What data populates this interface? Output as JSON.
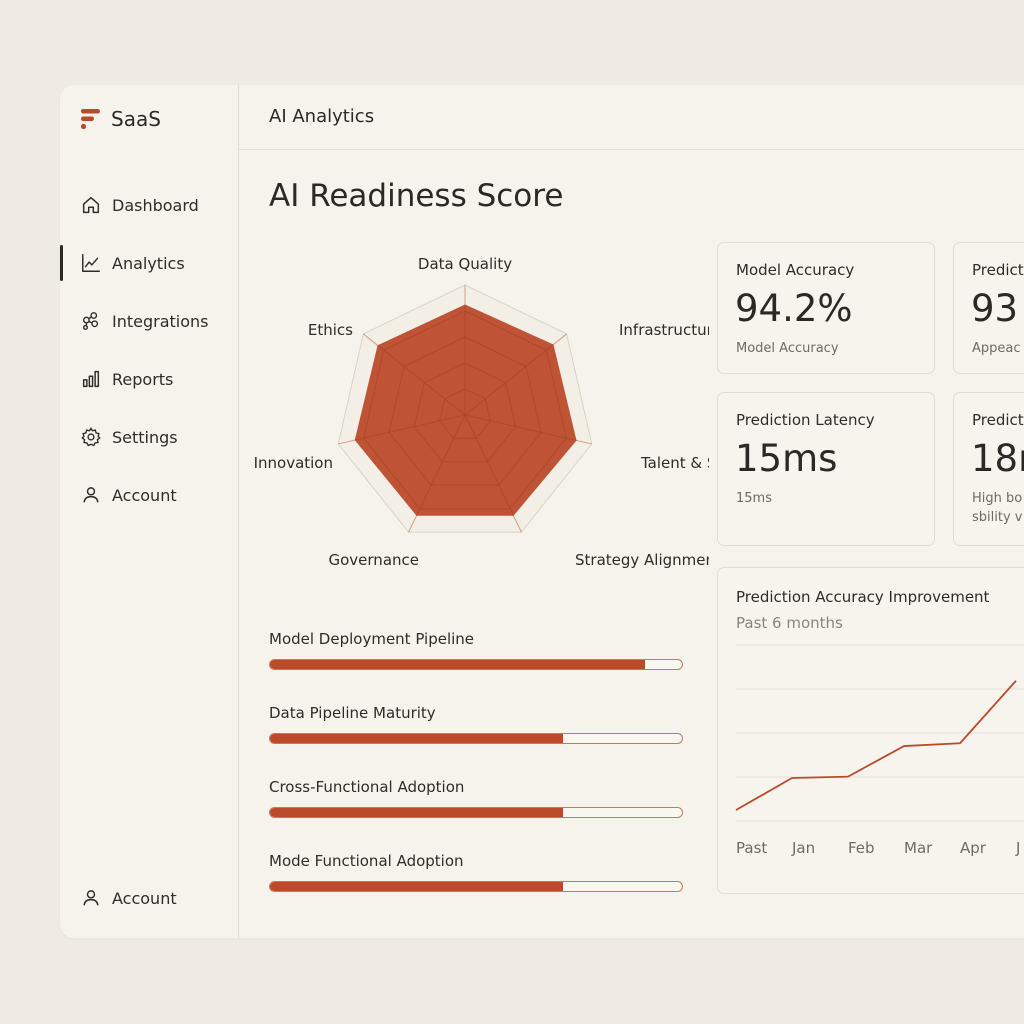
{
  "brand": {
    "name": "SaaS",
    "accent": "#bb4a2b"
  },
  "sidebar": {
    "items": [
      {
        "label": "Dashboard",
        "icon": "home-icon"
      },
      {
        "label": "Analytics",
        "icon": "line-chart-icon",
        "active": true
      },
      {
        "label": "Integrations",
        "icon": "integrations-icon"
      },
      {
        "label": "Reports",
        "icon": "bar-chart-icon"
      },
      {
        "label": "Settings",
        "icon": "gear-icon"
      },
      {
        "label": "Account",
        "icon": "user-icon"
      }
    ],
    "footer": {
      "label": "Account",
      "icon": "user-icon"
    }
  },
  "header": {
    "title": "AI Analytics"
  },
  "main": {
    "title": "AI Readiness Score",
    "radar": {
      "axes": [
        "Data Quality",
        "Infrastructure",
        "Talent & Skills",
        "Strategy Alignment",
        "Governance",
        "Innovation",
        "Ethics"
      ],
      "values": [
        0.85,
        0.87,
        0.88,
        0.86,
        0.86,
        0.87,
        0.86
      ],
      "fill_color": "#bb4a2b"
    },
    "progress": [
      {
        "label": "Model Deployment Pipeline",
        "value": 0.91
      },
      {
        "label": "Data Pipeline Maturity",
        "value": 0.71
      },
      {
        "label": "Cross-Functional Adoption",
        "value": 0.71
      },
      {
        "label": "Mode Functional Adoption",
        "value": 0.71
      }
    ]
  },
  "cards": [
    {
      "title": "Model Accuracy",
      "value": "94.2%",
      "sub": "Model Accuracy"
    },
    {
      "title": "Predict",
      "value": "93",
      "sub": "Appeac"
    },
    {
      "title": "Prediction Latency",
      "value": "15ms",
      "sub": "15ms"
    },
    {
      "title": "Predict",
      "value": "18r",
      "sub": "High bo sbility v"
    }
  ],
  "chart_data": {
    "type": "line",
    "title": "Prediction Accuracy Improvement",
    "subtitle": "Past 6 months",
    "categories": [
      "Past",
      "Jan",
      "Feb",
      "Mar",
      "Apr",
      "J"
    ],
    "series": [
      {
        "values": [
          0.0,
          0.23,
          0.24,
          0.46,
          0.48,
          0.93
        ]
      }
    ],
    "ylim": [
      0,
      1
    ],
    "grid": true,
    "line_color": "#bb4a2b"
  }
}
